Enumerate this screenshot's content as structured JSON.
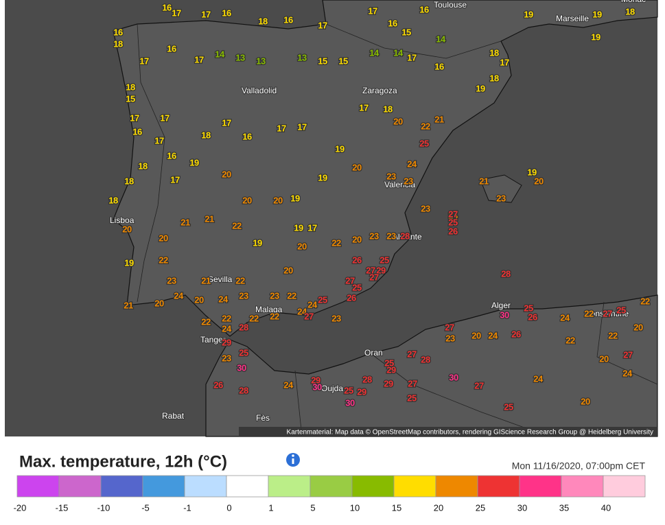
{
  "header": {
    "title": "Max. temperature, 12h (°C)",
    "timestamp": "Mon 11/16/2020, 07:00pm CET"
  },
  "legend": {
    "ticks": [
      -20,
      -15,
      -10,
      -5,
      -1,
      0,
      1,
      5,
      10,
      15,
      20,
      25,
      30,
      35,
      40
    ],
    "colors": [
      "#cc44ee",
      "#cc66cc",
      "#5566cc",
      "#4499dd",
      "#bbddff",
      "#ffffff",
      "#bbee88",
      "#99cc44",
      "#88bb00",
      "#ffdd00",
      "#ee8800",
      "#ee3333",
      "#ff3388",
      "#ff88bb",
      "#ffccdd"
    ]
  },
  "map": {
    "attribution": "Kartenmaterial: Map data © OpenStreetMap contributors, rendering GIScience Research Group @ Heidelberg University",
    "cities": [
      "Toulouse",
      "Marseille",
      "Monac",
      "Valladolid",
      "Zaragoza",
      "Valencia",
      "Lisboa",
      "Alicante",
      "Sevilla",
      "Malaga",
      "Tanger",
      "Alger",
      "Constantine",
      "Oran",
      "Oujda",
      "Rabat",
      "Fès"
    ],
    "readings": [
      16,
      17,
      17,
      16,
      18,
      16,
      17,
      17,
      16,
      15,
      14,
      16,
      19,
      19,
      19,
      18,
      16,
      18,
      17,
      16,
      17,
      14,
      13,
      13,
      13,
      15,
      15,
      14,
      14,
      17,
      16,
      18,
      17,
      19,
      18,
      18,
      15,
      17,
      16,
      17,
      17,
      18,
      17,
      16,
      17,
      17,
      19,
      17,
      18,
      20,
      22,
      21,
      25,
      24,
      18,
      18,
      18,
      16,
      17,
      19,
      20,
      20,
      20,
      19,
      19,
      20,
      23,
      23,
      23,
      24,
      25,
      26,
      21,
      23,
      19,
      20,
      20,
      20,
      19,
      22,
      21,
      21,
      22,
      19,
      19,
      17,
      20,
      22,
      20,
      23,
      23,
      28,
      26,
      25,
      27,
      29,
      27,
      27,
      25,
      26,
      25,
      24,
      22,
      23,
      23,
      24,
      20,
      24,
      20,
      21,
      23,
      21,
      22,
      20,
      24,
      23,
      27,
      22,
      22,
      22,
      22,
      24,
      28,
      29,
      23,
      25,
      30,
      26,
      28,
      24,
      29,
      30,
      30,
      25,
      29,
      28,
      29,
      27,
      25,
      28,
      27,
      29,
      25,
      28,
      27,
      27,
      23,
      20,
      24,
      26,
      25,
      26,
      24,
      22,
      27,
      25,
      22,
      20,
      22,
      22,
      20,
      27,
      24,
      20,
      24,
      25,
      27,
      30,
      30
    ]
  }
}
